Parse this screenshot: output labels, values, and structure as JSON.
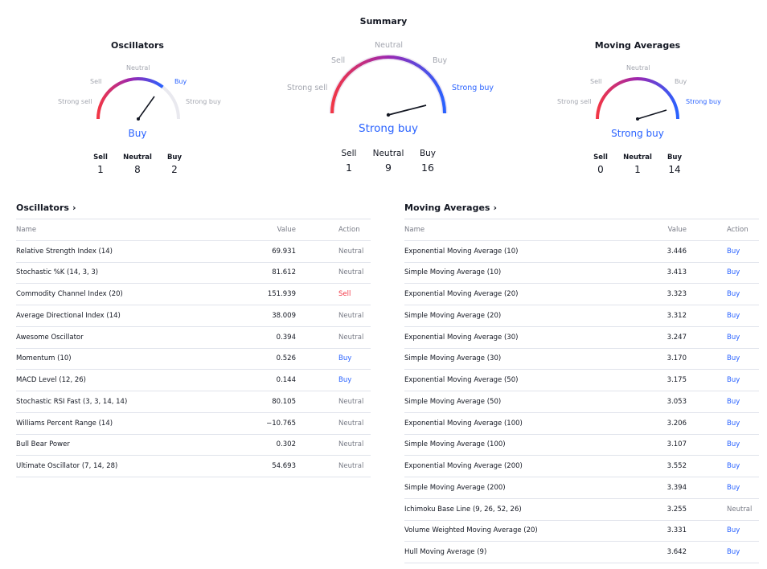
{
  "summary_title": "Summary",
  "gauges": {
    "oscillators": {
      "title": "Oscillators",
      "labels": {
        "strong_sell": "Strong sell",
        "sell": "Sell",
        "neutral": "Neutral",
        "buy": "Buy",
        "strong_buy": "Strong buy"
      },
      "active": "buy",
      "result": "Buy",
      "counts": [
        {
          "label": "Sell",
          "value": "1"
        },
        {
          "label": "Neutral",
          "value": "8"
        },
        {
          "label": "Buy",
          "value": "2"
        }
      ]
    },
    "summary": {
      "labels": {
        "strong_sell": "Strong sell",
        "sell": "Sell",
        "neutral": "Neutral",
        "buy": "Buy",
        "strong_buy": "Strong buy"
      },
      "active": "strong_buy",
      "result": "Strong buy",
      "counts": [
        {
          "label": "Sell",
          "value": "1"
        },
        {
          "label": "Neutral",
          "value": "9"
        },
        {
          "label": "Buy",
          "value": "16"
        }
      ]
    },
    "moving_averages": {
      "title": "Moving Averages",
      "labels": {
        "strong_sell": "Strong sell",
        "sell": "Sell",
        "neutral": "Neutral",
        "buy": "Buy",
        "strong_buy": "Strong buy"
      },
      "active": "strong_buy",
      "result": "Strong buy",
      "counts": [
        {
          "label": "Sell",
          "value": "0"
        },
        {
          "label": "Neutral",
          "value": "1"
        },
        {
          "label": "Buy",
          "value": "14"
        }
      ]
    }
  },
  "oscillators_table": {
    "title": "Oscillators",
    "headers": {
      "name": "Name",
      "value": "Value",
      "action": "Action"
    },
    "rows": [
      {
        "name": "Relative Strength Index (14)",
        "value": "69.931",
        "action": "Neutral"
      },
      {
        "name": "Stochastic %K (14, 3, 3)",
        "value": "81.612",
        "action": "Neutral"
      },
      {
        "name": "Commodity Channel Index (20)",
        "value": "151.939",
        "action": "Sell"
      },
      {
        "name": "Average Directional Index (14)",
        "value": "38.009",
        "action": "Neutral"
      },
      {
        "name": "Awesome Oscillator",
        "value": "0.394",
        "action": "Neutral"
      },
      {
        "name": "Momentum (10)",
        "value": "0.526",
        "action": "Buy"
      },
      {
        "name": "MACD Level (12, 26)",
        "value": "0.144",
        "action": "Buy"
      },
      {
        "name": "Stochastic RSI Fast (3, 3, 14, 14)",
        "value": "80.105",
        "action": "Neutral"
      },
      {
        "name": "Williams Percent Range (14)",
        "value": "−10.765",
        "action": "Neutral"
      },
      {
        "name": "Bull Bear Power",
        "value": "0.302",
        "action": "Neutral"
      },
      {
        "name": "Ultimate Oscillator (7, 14, 28)",
        "value": "54.693",
        "action": "Neutral"
      }
    ]
  },
  "moving_averages_table": {
    "title": "Moving Averages",
    "headers": {
      "name": "Name",
      "value": "Value",
      "action": "Action"
    },
    "rows": [
      {
        "name": "Exponential Moving Average (10)",
        "value": "3.446",
        "action": "Buy"
      },
      {
        "name": "Simple Moving Average (10)",
        "value": "3.413",
        "action": "Buy"
      },
      {
        "name": "Exponential Moving Average (20)",
        "value": "3.323",
        "action": "Buy"
      },
      {
        "name": "Simple Moving Average (20)",
        "value": "3.312",
        "action": "Buy"
      },
      {
        "name": "Exponential Moving Average (30)",
        "value": "3.247",
        "action": "Buy"
      },
      {
        "name": "Simple Moving Average (30)",
        "value": "3.170",
        "action": "Buy"
      },
      {
        "name": "Exponential Moving Average (50)",
        "value": "3.175",
        "action": "Buy"
      },
      {
        "name": "Simple Moving Average (50)",
        "value": "3.053",
        "action": "Buy"
      },
      {
        "name": "Exponential Moving Average (100)",
        "value": "3.206",
        "action": "Buy"
      },
      {
        "name": "Simple Moving Average (100)",
        "value": "3.107",
        "action": "Buy"
      },
      {
        "name": "Exponential Moving Average (200)",
        "value": "3.552",
        "action": "Buy"
      },
      {
        "name": "Simple Moving Average (200)",
        "value": "3.394",
        "action": "Buy"
      },
      {
        "name": "Ichimoku Base Line (9, 26, 52, 26)",
        "value": "3.255",
        "action": "Neutral"
      },
      {
        "name": "Volume Weighted Moving Average (20)",
        "value": "3.331",
        "action": "Buy"
      },
      {
        "name": "Hull Moving Average (9)",
        "value": "3.642",
        "action": "Buy"
      }
    ]
  },
  "colors": {
    "buy": "#2962ff",
    "sell": "#f23645",
    "neutral": "#787b86",
    "arc_sell": "#f23645",
    "arc_neutral": "#9c27b0",
    "arc_buy": "#2962ff"
  }
}
